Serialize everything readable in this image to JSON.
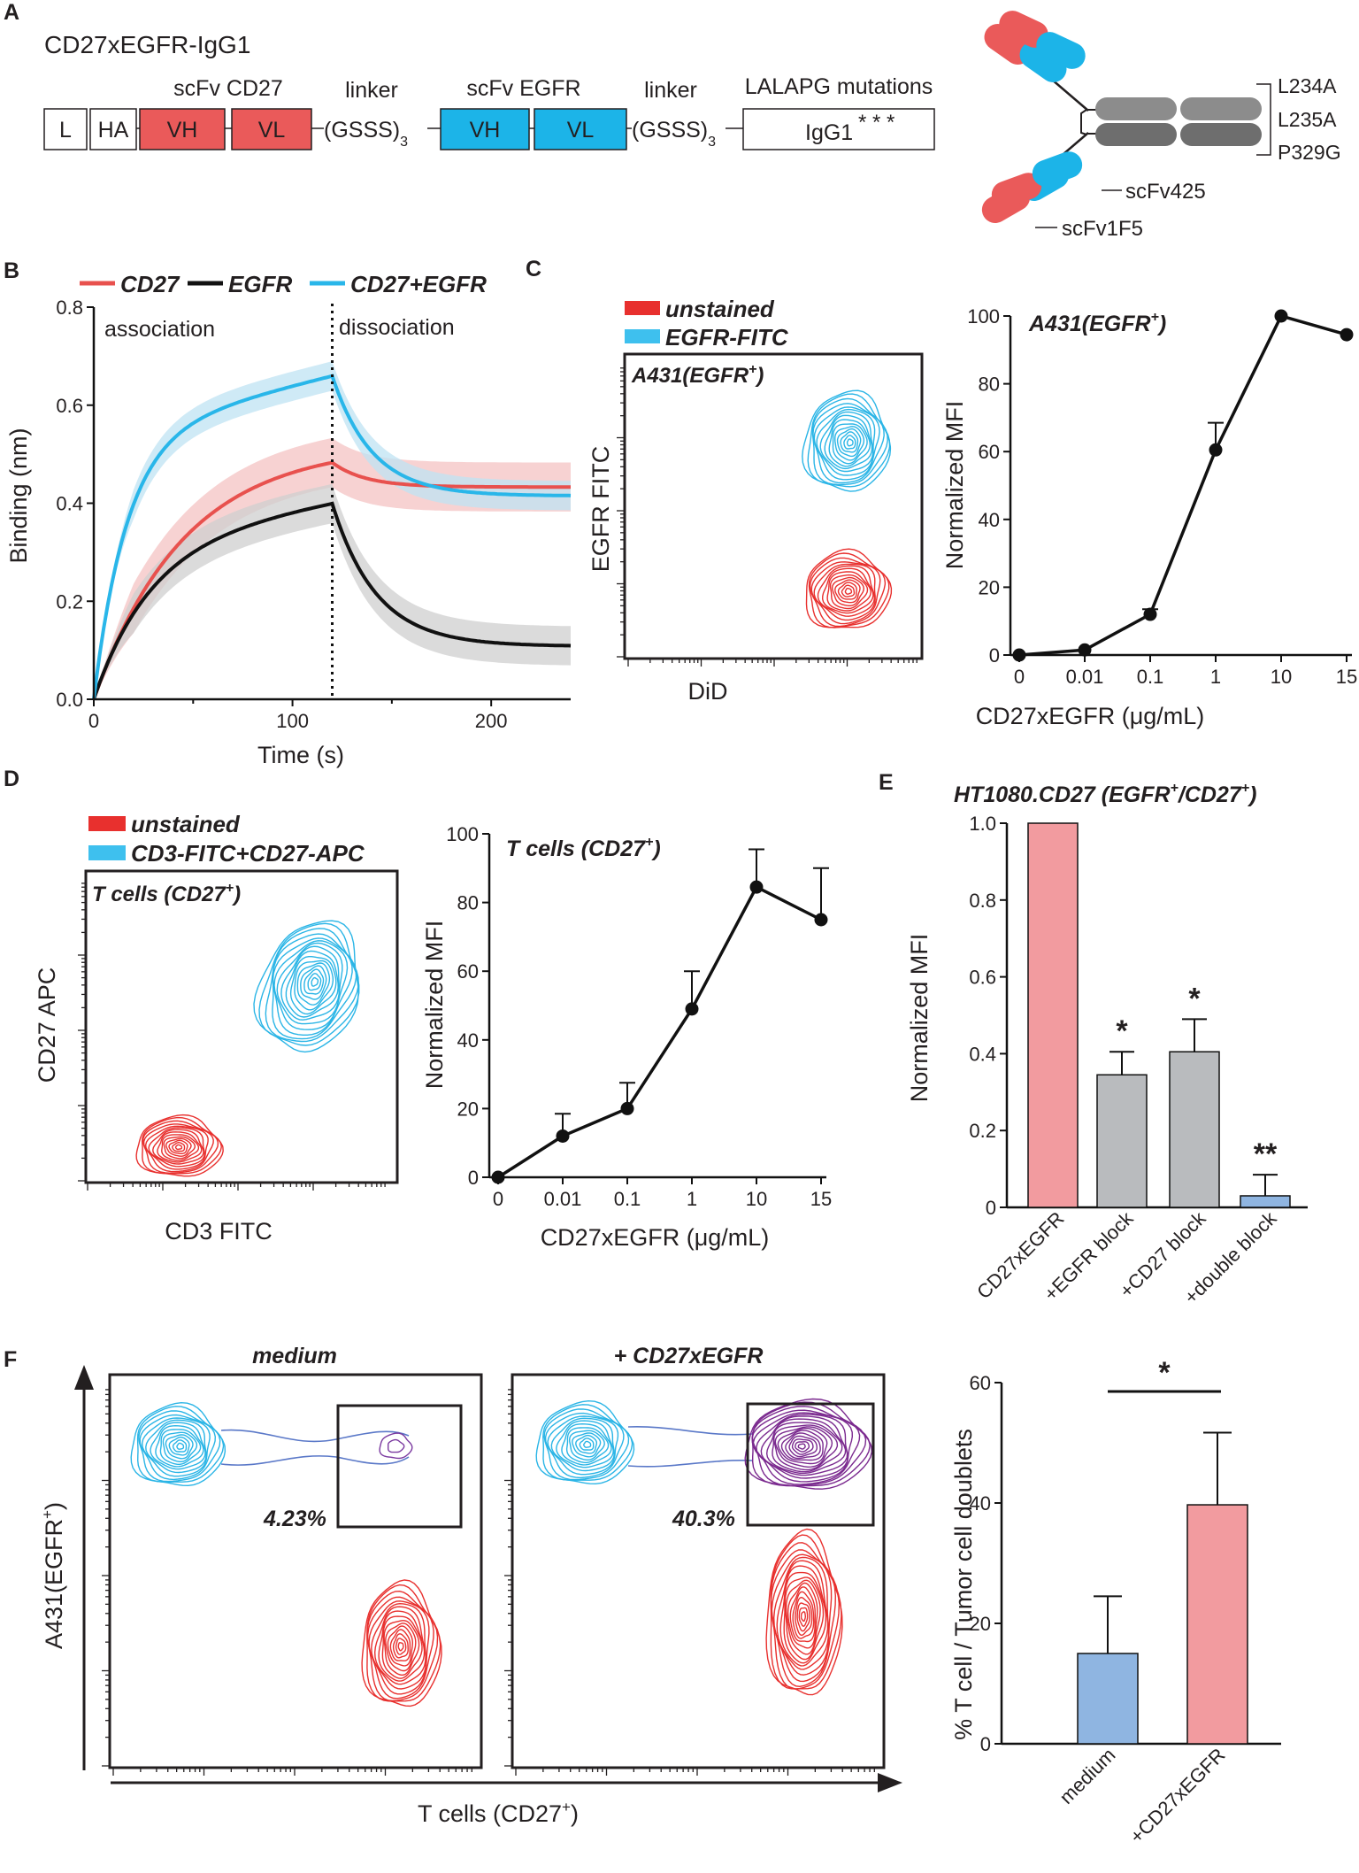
{
  "panelA": {
    "letter": "A",
    "construct_title": "CD27xEGFR-IgG1",
    "boxes": {
      "L": "L",
      "HA": "HA",
      "vh1": "VH",
      "vl1": "VL",
      "vh2": "VH",
      "vl2": "VL",
      "fc": "IgG1",
      "stars": "* * *"
    },
    "linker_text": "(GSSS)",
    "linker_sub": "3",
    "labels": {
      "scfv_cd27": "scFv CD27",
      "linker1": "linker",
      "scfv_egfr": "scFv EGFR",
      "linker2": "linker",
      "lalapg": "LALAPG mutations"
    },
    "mutations": [
      "L234A",
      "L235A",
      "P329G"
    ],
    "scfv425": "scFv425",
    "scfv1f5": "scFv1F5",
    "colors": {
      "cd27": "#ea5a5a",
      "egfr": "#1cb4e8",
      "fc": "#8c8c8c"
    }
  },
  "panelB": {
    "letter": "B",
    "legend": [
      "CD27",
      "EGFR",
      "CD27+EGFR"
    ],
    "association": "association",
    "dissociation": "dissociation",
    "chart_data": {
      "type": "line",
      "xlabel": "Time (s)",
      "ylabel": "Binding (nm)",
      "xlim": [
        0,
        240
      ],
      "ylim": [
        0,
        0.8
      ],
      "xticks": [
        "0",
        "100",
        "200"
      ],
      "yticks": [
        "0.0",
        "0.2",
        "0.4",
        "0.6",
        "0.8"
      ],
      "dissociation_start": 120,
      "series": [
        {
          "name": "CD27",
          "color": "#e8514e",
          "band": "#f4c3c3",
          "assoc_plateau": 0.52,
          "assoc_k": 0.022,
          "dissoc_end": 0.433,
          "dissoc_k": 0.06,
          "sd": 0.05
        },
        {
          "name": "EGFR",
          "color": "#111111",
          "band": "#cfcfcf",
          "assoc_plateau": 0.32,
          "assoc_k": 0.035,
          "assoc_lin": 0.0007,
          "dissoc_end": 0.108,
          "dissoc_k": 0.045,
          "sd": 0.04
        },
        {
          "name": "CD27+EGFR",
          "color": "#29b6e9",
          "band": "#bfe3f3",
          "assoc_plateau": 0.54,
          "assoc_k": 0.06,
          "assoc_lin": 0.001,
          "dissoc_end": 0.415,
          "dissoc_k": 0.05,
          "sd": 0.03
        }
      ]
    }
  },
  "panelC": {
    "letter": "C",
    "legend": [
      "unstained",
      "EGFR-FITC"
    ],
    "flow_title": "A431(EGFR",
    "flow_sup": "+",
    "flow_close": ")",
    "flow_ylabel": "EGFR FITC",
    "flow_xlabel": "DiD",
    "chart_data": {
      "type": "line",
      "title": "A431(EGFR+)",
      "xlabel": "CD27xEGFR (μg/mL)",
      "ylabel": "Normalized MFI",
      "categories": [
        "0",
        "0.01",
        "0.1",
        "1",
        "10",
        "15"
      ],
      "values": [
        0,
        1.5,
        12,
        60.5,
        100,
        94.5
      ],
      "errors": [
        0,
        0,
        1.5,
        8,
        0,
        0
      ],
      "ylim": [
        0,
        100
      ],
      "yticks": [
        "0",
        "20",
        "40",
        "60",
        "80",
        "100"
      ]
    }
  },
  "panelD": {
    "letter": "D",
    "legend": [
      "unstained",
      "CD3-FITC+CD27-APC"
    ],
    "flow_title": "T cells (CD27",
    "flow_sup": "+",
    "flow_close": ")",
    "flow_ylabel": "CD27 APC",
    "flow_xlabel": "CD3 FITC",
    "chart_data": {
      "type": "line",
      "title": "T cells (CD27+)",
      "xlabel": "CD27xEGFR (μg/mL)",
      "ylabel": "Normalized MFI",
      "categories": [
        "0",
        "0.01",
        "0.1",
        "1",
        "10",
        "15"
      ],
      "values": [
        0,
        12,
        20,
        49,
        84.5,
        75
      ],
      "errors": [
        0,
        6.5,
        7.5,
        11,
        11,
        15
      ],
      "ylim": [
        0,
        100
      ],
      "yticks": [
        "0",
        "20",
        "40",
        "60",
        "80",
        "100"
      ]
    }
  },
  "panelE": {
    "letter": "E",
    "title_main": "HT1080.CD27 (EGFR",
    "title_mid": "/CD27",
    "sup": "+",
    "title_close": ")",
    "chart_data": {
      "type": "bar",
      "ylabel": "Normalized MFI",
      "categories": [
        "CD27xEGFR",
        "+EGFR block",
        "+CD27 block",
        "+double block"
      ],
      "values": [
        1.0,
        0.345,
        0.405,
        0.03
      ],
      "errors": [
        0,
        0.06,
        0.085,
        0.055
      ],
      "significance": [
        "",
        "*",
        "*",
        "**"
      ],
      "colors": [
        "#f29b9f",
        "#b9bbbe",
        "#b9bbbe",
        "#8fb5e1"
      ],
      "ylim": [
        0,
        1.0
      ],
      "yticks": [
        "0",
        "0.2",
        "0.4",
        "0.6",
        "0.8",
        "1.0"
      ]
    }
  },
  "panelF": {
    "letter": "F",
    "medium_title": "medium",
    "ab_title": "+ CD27xEGFR",
    "pct_medium": "4.23%",
    "pct_ab": "40.3%",
    "flow_ylabel": "A431(EGFR",
    "flow_xlabel": "T cells (CD27",
    "sup": "+",
    "close": ")",
    "chart_data": {
      "type": "bar",
      "ylabel": "% T cell / Tumor cell doublets",
      "categories": [
        "medium",
        "+CD27xEGFR"
      ],
      "values": [
        15,
        39.7
      ],
      "errors": [
        9.5,
        12
      ],
      "significance": "*",
      "colors": [
        "#8fb5e1",
        "#f29b9f"
      ],
      "ylim": [
        0,
        60
      ],
      "yticks": [
        "0",
        "20",
        "40",
        "60"
      ]
    }
  }
}
